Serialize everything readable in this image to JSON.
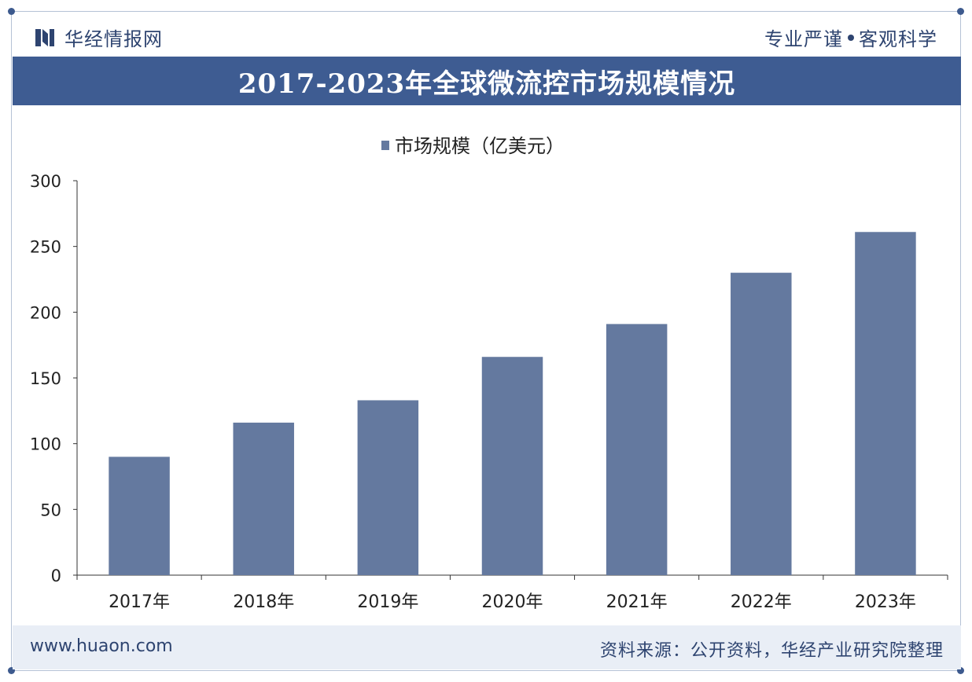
{
  "header": {
    "brand_name": "华经情报网",
    "slogan_left": "专业严谨",
    "slogan_right": "客观科学"
  },
  "colors": {
    "accent": "#3e5c92",
    "bar": "#64799f",
    "text": "#2e4470"
  },
  "chart_data": {
    "type": "bar",
    "title": "2017-2023年全球微流控市场规模情况",
    "categories": [
      "2017年",
      "2018年",
      "2019年",
      "2020年",
      "2021年",
      "2022年",
      "2023年"
    ],
    "series": [
      {
        "name": "市场规模（亿美元）",
        "values": [
          90,
          116,
          133,
          166,
          191,
          230,
          261
        ]
      }
    ],
    "ylim": [
      0,
      300
    ],
    "yticks": [
      0,
      50,
      100,
      150,
      200,
      250,
      300
    ],
    "xlabel": "",
    "ylabel": "",
    "grid": false,
    "legend_position": "top"
  },
  "footer": {
    "website": "www.huaon.com",
    "source": "资料来源：公开资料，华经产业研究院整理"
  }
}
